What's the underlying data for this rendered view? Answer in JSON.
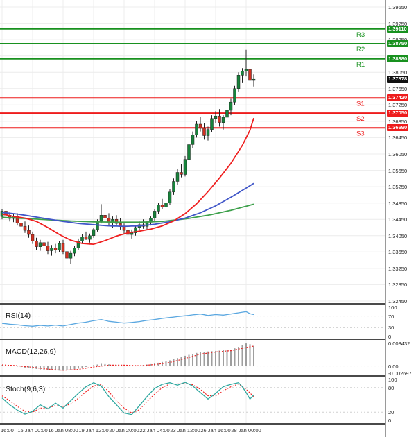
{
  "colors": {
    "resistance": "#18911f",
    "support": "#ee1c1c",
    "up_candle": "#17833b",
    "down_candle": "#d03020",
    "wick": "#222222",
    "ma_fast": "#ef2020",
    "ma_mid": "#4056c8",
    "ma_slow": "#3da04b",
    "rsi_line": "#5aa7e0",
    "macd_hist": "#9e9e9e",
    "macd_signal": "#ef2020",
    "stoch_k": "#2fa8a0",
    "stoch_d": "#ef2020",
    "current_badge": "#111111"
  },
  "chart_data": {
    "type": "candlestick",
    "y_axis": {
      "labels": [
        "1.39650",
        "1.39250",
        "1.38850",
        "1.38450",
        "1.38050",
        "1.37650",
        "1.37250",
        "1.36850",
        "1.36450",
        "1.36050",
        "1.35650",
        "1.35250",
        "1.34850",
        "1.34450",
        "1.34050",
        "1.33650",
        "1.33250",
        "1.32850",
        "1.32450"
      ]
    },
    "x_axis": {
      "labels": [
        {
          "i": 0,
          "text": "16:00"
        },
        {
          "i": 8,
          "text": "15 Jan 00:00"
        },
        {
          "i": 16,
          "text": "16 Jan 08:00"
        },
        {
          "i": 24,
          "text": "19 Jan 12:00"
        },
        {
          "i": 32,
          "text": "20 Jan 20:00"
        },
        {
          "i": 40,
          "text": "22 Jan 04:00"
        },
        {
          "i": 48,
          "text": "23 Jan 12:00"
        },
        {
          "i": 56,
          "text": "26 Jan 16:00"
        },
        {
          "i": 64,
          "text": "28 Jan 00:00"
        }
      ]
    },
    "levels": {
      "resistance": [
        {
          "name": "R3",
          "price": "1.39110"
        },
        {
          "name": "R2",
          "price": "1.38750"
        },
        {
          "name": "R1",
          "price": "1.38380"
        }
      ],
      "support": [
        {
          "name": "S1",
          "price": "1.37420"
        },
        {
          "name": "S2",
          "price": "1.37050"
        },
        {
          "name": "S3",
          "price": "1.36690"
        }
      ],
      "current_price": "1.37878"
    },
    "candles": [
      [
        1.3452,
        1.347,
        1.3445,
        1.3465
      ],
      [
        1.3465,
        1.3478,
        1.345,
        1.3455
      ],
      [
        1.3455,
        1.3462,
        1.344,
        1.3447
      ],
      [
        1.3447,
        1.3458,
        1.3438,
        1.3452
      ],
      [
        1.3452,
        1.346,
        1.343,
        1.3436
      ],
      [
        1.3436,
        1.3445,
        1.342,
        1.3428
      ],
      [
        1.3428,
        1.344,
        1.3412,
        1.3418
      ],
      [
        1.3418,
        1.343,
        1.34,
        1.3408
      ],
      [
        1.3408,
        1.3415,
        1.3385,
        1.3392
      ],
      [
        1.3392,
        1.34,
        1.337,
        1.3378
      ],
      [
        1.3378,
        1.3395,
        1.3368,
        1.3388
      ],
      [
        1.3388,
        1.3398,
        1.3375,
        1.338
      ],
      [
        1.338,
        1.339,
        1.336,
        1.3368
      ],
      [
        1.3368,
        1.3382,
        1.3356,
        1.3375
      ],
      [
        1.3375,
        1.3385,
        1.3362,
        1.337
      ],
      [
        1.337,
        1.3392,
        1.3365,
        1.3386
      ],
      [
        1.3386,
        1.3395,
        1.336,
        1.3366
      ],
      [
        1.3366,
        1.3375,
        1.334,
        1.335
      ],
      [
        1.335,
        1.3368,
        1.3335,
        1.3362
      ],
      [
        1.3362,
        1.338,
        1.3355,
        1.3375
      ],
      [
        1.3375,
        1.3398,
        1.337,
        1.3392
      ],
      [
        1.3392,
        1.3408,
        1.3385,
        1.3402
      ],
      [
        1.3402,
        1.3415,
        1.3395,
        1.3396
      ],
      [
        1.3396,
        1.341,
        1.3388,
        1.3405
      ],
      [
        1.3405,
        1.3425,
        1.34,
        1.342
      ],
      [
        1.342,
        1.3445,
        1.3415,
        1.344
      ],
      [
        1.344,
        1.3482,
        1.3435,
        1.3455
      ],
      [
        1.3455,
        1.347,
        1.344,
        1.3448
      ],
      [
        1.3448,
        1.346,
        1.343,
        1.3438
      ],
      [
        1.3438,
        1.3452,
        1.3425,
        1.3445
      ],
      [
        1.3445,
        1.3455,
        1.343,
        1.3435
      ],
      [
        1.3435,
        1.3448,
        1.342,
        1.3428
      ],
      [
        1.3428,
        1.3435,
        1.341,
        1.3418
      ],
      [
        1.3418,
        1.3428,
        1.34,
        1.3408
      ],
      [
        1.3408,
        1.342,
        1.3398,
        1.3412
      ],
      [
        1.3412,
        1.343,
        1.3405,
        1.3425
      ],
      [
        1.3425,
        1.344,
        1.3418,
        1.3432
      ],
      [
        1.3432,
        1.3445,
        1.3422,
        1.3428
      ],
      [
        1.3428,
        1.3442,
        1.342,
        1.3438
      ],
      [
        1.3438,
        1.3452,
        1.343,
        1.3448
      ],
      [
        1.3448,
        1.347,
        1.3442,
        1.3465
      ],
      [
        1.3465,
        1.3485,
        1.3458,
        1.348
      ],
      [
        1.348,
        1.3495,
        1.347,
        1.3475
      ],
      [
        1.3475,
        1.349,
        1.3465,
        1.3485
      ],
      [
        1.3485,
        1.352,
        1.348,
        1.3512
      ],
      [
        1.3512,
        1.3545,
        1.3505,
        1.3538
      ],
      [
        1.3538,
        1.3568,
        1.353,
        1.356
      ],
      [
        1.356,
        1.358,
        1.3548,
        1.3555
      ],
      [
        1.3555,
        1.36,
        1.355,
        1.3592
      ],
      [
        1.3592,
        1.3635,
        1.3585,
        1.3628
      ],
      [
        1.3628,
        1.366,
        1.362,
        1.3652
      ],
      [
        1.3652,
        1.3685,
        1.3645,
        1.3678
      ],
      [
        1.3678,
        1.3695,
        1.366,
        1.3668
      ],
      [
        1.3668,
        1.368,
        1.364,
        1.365
      ],
      [
        1.365,
        1.3672,
        1.3638,
        1.3665
      ],
      [
        1.3665,
        1.37,
        1.3658,
        1.3692
      ],
      [
        1.3692,
        1.371,
        1.368,
        1.3698
      ],
      [
        1.3698,
        1.3715,
        1.3672,
        1.3682
      ],
      [
        1.3682,
        1.37,
        1.3665,
        1.3695
      ],
      [
        1.3695,
        1.372,
        1.3688,
        1.3712
      ],
      [
        1.3712,
        1.374,
        1.37,
        1.3732
      ],
      [
        1.3732,
        1.3772,
        1.3725,
        1.3765
      ],
      [
        1.3765,
        1.3805,
        1.3758,
        1.3798
      ],
      [
        1.3798,
        1.3815,
        1.378,
        1.3808
      ],
      [
        1.3808,
        1.386,
        1.3795,
        1.3812
      ],
      [
        1.3812,
        1.382,
        1.3775,
        1.3785
      ],
      [
        1.3785,
        1.38,
        1.377,
        1.3788
      ]
    ],
    "moving_averages": {
      "fast_red": [
        [
          0,
          1.3458
        ],
        [
          3,
          1.3452
        ],
        [
          6,
          1.3448
        ],
        [
          9,
          1.344
        ],
        [
          12,
          1.3425
        ],
        [
          15,
          1.3408
        ],
        [
          18,
          1.3394
        ],
        [
          21,
          1.3386
        ],
        [
          24,
          1.3384
        ],
        [
          27,
          1.3393
        ],
        [
          30,
          1.3404
        ],
        [
          33,
          1.3412
        ],
        [
          36,
          1.3416
        ],
        [
          39,
          1.3421
        ],
        [
          42,
          1.3429
        ],
        [
          45,
          1.3441
        ],
        [
          48,
          1.3459
        ],
        [
          51,
          1.3483
        ],
        [
          54,
          1.3513
        ],
        [
          57,
          1.3546
        ],
        [
          60,
          1.3582
        ],
        [
          63,
          1.3626
        ],
        [
          65,
          1.3663
        ],
        [
          66,
          1.3693
        ]
      ],
      "mid_blue": [
        [
          0,
          1.3462
        ],
        [
          4,
          1.3458
        ],
        [
          8,
          1.3452
        ],
        [
          12,
          1.3446
        ],
        [
          16,
          1.344
        ],
        [
          20,
          1.3435
        ],
        [
          24,
          1.3432
        ],
        [
          28,
          1.3429
        ],
        [
          32,
          1.3428
        ],
        [
          36,
          1.3429
        ],
        [
          40,
          1.3433
        ],
        [
          44,
          1.3439
        ],
        [
          48,
          1.3448
        ],
        [
          52,
          1.3461
        ],
        [
          56,
          1.3478
        ],
        [
          60,
          1.3499
        ],
        [
          63,
          1.3516
        ],
        [
          66,
          1.3533
        ]
      ],
      "slow_green": [
        [
          0,
          1.345
        ],
        [
          6,
          1.3447
        ],
        [
          12,
          1.3444
        ],
        [
          18,
          1.3441
        ],
        [
          24,
          1.3439
        ],
        [
          30,
          1.3438
        ],
        [
          36,
          1.3438
        ],
        [
          42,
          1.344
        ],
        [
          48,
          1.3446
        ],
        [
          54,
          1.3455
        ],
        [
          60,
          1.3467
        ],
        [
          66,
          1.3482
        ]
      ]
    },
    "indicators": {
      "rsi": {
        "label": "RSI(14)",
        "scale": [
          "100",
          "70",
          "30",
          "0"
        ],
        "levels": [
          70,
          30
        ],
        "points": [
          [
            0,
            45
          ],
          [
            2,
            42
          ],
          [
            4,
            40
          ],
          [
            6,
            37
          ],
          [
            8,
            35
          ],
          [
            10,
            38
          ],
          [
            12,
            36
          ],
          [
            14,
            39
          ],
          [
            16,
            36
          ],
          [
            18,
            41
          ],
          [
            20,
            46
          ],
          [
            22,
            49
          ],
          [
            24,
            54
          ],
          [
            26,
            58
          ],
          [
            28,
            52
          ],
          [
            30,
            49
          ],
          [
            32,
            46
          ],
          [
            34,
            48
          ],
          [
            36,
            51
          ],
          [
            38,
            55
          ],
          [
            40,
            58
          ],
          [
            42,
            62
          ],
          [
            44,
            65
          ],
          [
            46,
            68
          ],
          [
            48,
            71
          ],
          [
            50,
            74
          ],
          [
            52,
            77
          ],
          [
            54,
            72
          ],
          [
            56,
            75
          ],
          [
            58,
            73
          ],
          [
            60,
            77
          ],
          [
            62,
            81
          ],
          [
            63,
            83
          ],
          [
            64,
            85
          ],
          [
            65,
            78
          ],
          [
            66,
            75
          ]
        ]
      },
      "macd": {
        "label": "MACD(12,26,9)",
        "scale": [
          "0.008432",
          "0.00",
          "-0.002697"
        ],
        "histogram_points": [
          [
            0,
            0.0003
          ],
          [
            4,
            -0.0002
          ],
          [
            8,
            -0.001
          ],
          [
            12,
            -0.0016
          ],
          [
            16,
            -0.0018
          ],
          [
            20,
            -0.001
          ],
          [
            24,
            0.0003
          ],
          [
            26,
            0.0008
          ],
          [
            28,
            0.0006
          ],
          [
            32,
            -0.0001
          ],
          [
            36,
            0.0001
          ],
          [
            40,
            0.0009
          ],
          [
            44,
            0.0021
          ],
          [
            48,
            0.0038
          ],
          [
            52,
            0.0052
          ],
          [
            56,
            0.0056
          ],
          [
            60,
            0.0061
          ],
          [
            62,
            0.0071
          ],
          [
            63,
            0.0077
          ],
          [
            64,
            0.0084
          ],
          [
            65,
            0.0081
          ],
          [
            66,
            0.0075
          ]
        ],
        "signal_points": [
          [
            0,
            0.0004
          ],
          [
            4,
            0.0001
          ],
          [
            8,
            -0.0005
          ],
          [
            12,
            -0.0012
          ],
          [
            16,
            -0.0016
          ],
          [
            20,
            -0.0013
          ],
          [
            24,
            -0.0004
          ],
          [
            28,
            0.0003
          ],
          [
            32,
            0.0003
          ],
          [
            36,
            0.0001
          ],
          [
            40,
            0.0005
          ],
          [
            44,
            0.0013
          ],
          [
            48,
            0.0028
          ],
          [
            52,
            0.0044
          ],
          [
            56,
            0.0052
          ],
          [
            60,
            0.0057
          ],
          [
            63,
            0.0066
          ],
          [
            66,
            0.0074
          ]
        ]
      },
      "stoch": {
        "label": "Stoch(9,6,3)",
        "scale": [
          "100",
          "80",
          "20",
          "0"
        ],
        "levels": [
          80,
          20
        ],
        "k_points": [
          [
            0,
            55
          ],
          [
            2,
            38
          ],
          [
            4,
            25
          ],
          [
            6,
            15
          ],
          [
            8,
            22
          ],
          [
            10,
            38
          ],
          [
            12,
            28
          ],
          [
            14,
            42
          ],
          [
            16,
            30
          ],
          [
            18,
            48
          ],
          [
            20,
            66
          ],
          [
            22,
            82
          ],
          [
            24,
            92
          ],
          [
            26,
            84
          ],
          [
            28,
            58
          ],
          [
            30,
            38
          ],
          [
            32,
            18
          ],
          [
            34,
            14
          ],
          [
            36,
            36
          ],
          [
            38,
            58
          ],
          [
            40,
            78
          ],
          [
            42,
            88
          ],
          [
            44,
            92
          ],
          [
            46,
            86
          ],
          [
            48,
            93
          ],
          [
            50,
            84
          ],
          [
            52,
            68
          ],
          [
            54,
            52
          ],
          [
            56,
            66
          ],
          [
            58,
            82
          ],
          [
            60,
            88
          ],
          [
            62,
            92
          ],
          [
            63,
            82
          ],
          [
            64,
            68
          ],
          [
            65,
            52
          ],
          [
            66,
            62
          ]
        ],
        "d_points": [
          [
            0,
            60
          ],
          [
            2,
            48
          ],
          [
            4,
            34
          ],
          [
            6,
            22
          ],
          [
            8,
            20
          ],
          [
            10,
            30
          ],
          [
            12,
            30
          ],
          [
            14,
            36
          ],
          [
            16,
            34
          ],
          [
            18,
            40
          ],
          [
            20,
            54
          ],
          [
            22,
            70
          ],
          [
            24,
            84
          ],
          [
            26,
            88
          ],
          [
            28,
            70
          ],
          [
            30,
            48
          ],
          [
            32,
            30
          ],
          [
            34,
            18
          ],
          [
            36,
            26
          ],
          [
            38,
            46
          ],
          [
            40,
            64
          ],
          [
            42,
            80
          ],
          [
            44,
            89
          ],
          [
            46,
            89
          ],
          [
            48,
            90
          ],
          [
            50,
            87
          ],
          [
            52,
            76
          ],
          [
            54,
            60
          ],
          [
            56,
            60
          ],
          [
            58,
            72
          ],
          [
            60,
            82
          ],
          [
            62,
            89
          ],
          [
            64,
            76
          ],
          [
            66,
            58
          ]
        ]
      }
    }
  }
}
